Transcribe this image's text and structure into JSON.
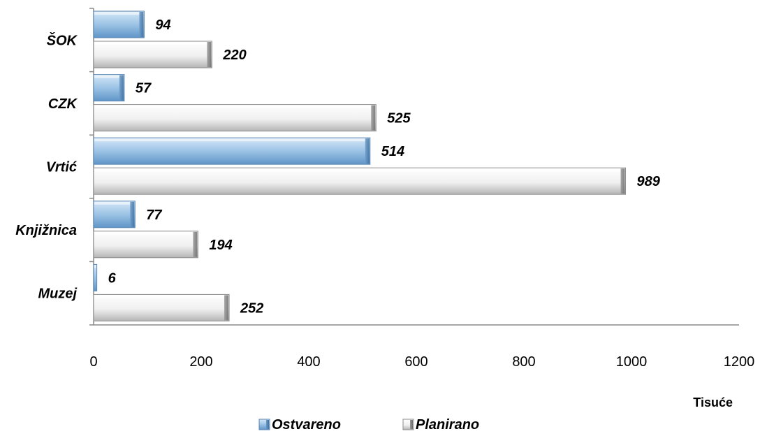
{
  "chart_data": {
    "type": "bar",
    "orientation": "horizontal",
    "categories": [
      "Muzej",
      "Knjižnica",
      "Vrtić",
      "CZK",
      "ŠOK"
    ],
    "series": [
      {
        "name": "Ostvareno",
        "values": [
          6,
          77,
          514,
          57,
          94
        ],
        "color": "#9cc3e5"
      },
      {
        "name": "Planirano",
        "values": [
          252,
          194,
          989,
          525,
          220
        ],
        "color": "#e8e8e8"
      }
    ],
    "xlim": [
      0,
      1200
    ],
    "x_ticks": [
      0,
      200,
      400,
      600,
      800,
      1000,
      1200
    ],
    "xlabel": "Tisuće",
    "legend_position": "bottom",
    "grid": false
  }
}
